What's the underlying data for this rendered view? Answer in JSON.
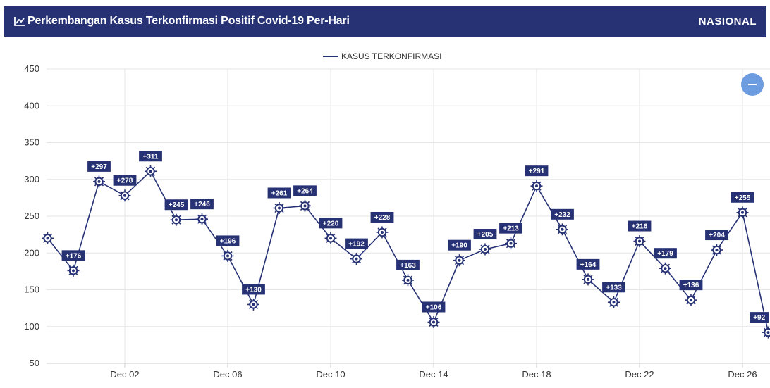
{
  "header": {
    "title": "Perkembangan Kasus Terkonfirmasi Positif Covid-19 Per-Hari",
    "scope": "NASIONAL",
    "title_icon": "line-chart-icon"
  },
  "colors": {
    "header_bg": "#273275",
    "series": "#273275",
    "zoom_button": "#6d9de0"
  },
  "zoom_button_icon": "minus-icon",
  "chart_data": {
    "type": "line",
    "title": "",
    "legend": {
      "position": "top-center",
      "entries": [
        "KASUS TERKONFIRMASI"
      ]
    },
    "grid": true,
    "ylim": [
      50,
      450
    ],
    "yticks": [
      50,
      100,
      150,
      200,
      250,
      300,
      350,
      400,
      450
    ],
    "x_tick_labels": [
      "Dec 02",
      "Dec 06",
      "Dec 10",
      "Dec 14",
      "Dec 18",
      "Dec 22",
      "Dec 26"
    ],
    "x_tick_positions": [
      "2020-12-02",
      "2020-12-06",
      "2020-12-10",
      "2020-12-14",
      "2020-12-18",
      "2020-12-22",
      "2020-12-26"
    ],
    "series": [
      {
        "name": "KASUS TERKONFIRMASI",
        "x": [
          "2020-11-29",
          "2020-11-30",
          "2020-12-01",
          "2020-12-02",
          "2020-12-03",
          "2020-12-04",
          "2020-12-05",
          "2020-12-06",
          "2020-12-07",
          "2020-12-08",
          "2020-12-09",
          "2020-12-10",
          "2020-12-11",
          "2020-12-12",
          "2020-12-13",
          "2020-12-14",
          "2020-12-15",
          "2020-12-16",
          "2020-12-17",
          "2020-12-18",
          "2020-12-19",
          "2020-12-20",
          "2020-12-21",
          "2020-12-22",
          "2020-12-23",
          "2020-12-24",
          "2020-12-25",
          "2020-12-26",
          "2020-12-27"
        ],
        "values": [
          220,
          176,
          297,
          278,
          311,
          245,
          246,
          196,
          130,
          261,
          264,
          220,
          192,
          228,
          163,
          106,
          190,
          205,
          213,
          291,
          232,
          164,
          133,
          216,
          179,
          136,
          204,
          255,
          92
        ],
        "labels": [
          "",
          "+176",
          "+297",
          "+278",
          "+311",
          "+245",
          "+246",
          "+196",
          "+130",
          "+261",
          "+264",
          "+220",
          "+192",
          "+228",
          "+163",
          "+106",
          "+190",
          "+205",
          "+213",
          "+291",
          "+232",
          "+164",
          "+133",
          "+216",
          "+179",
          "+136",
          "+204",
          "+255",
          "+92"
        ]
      }
    ]
  }
}
